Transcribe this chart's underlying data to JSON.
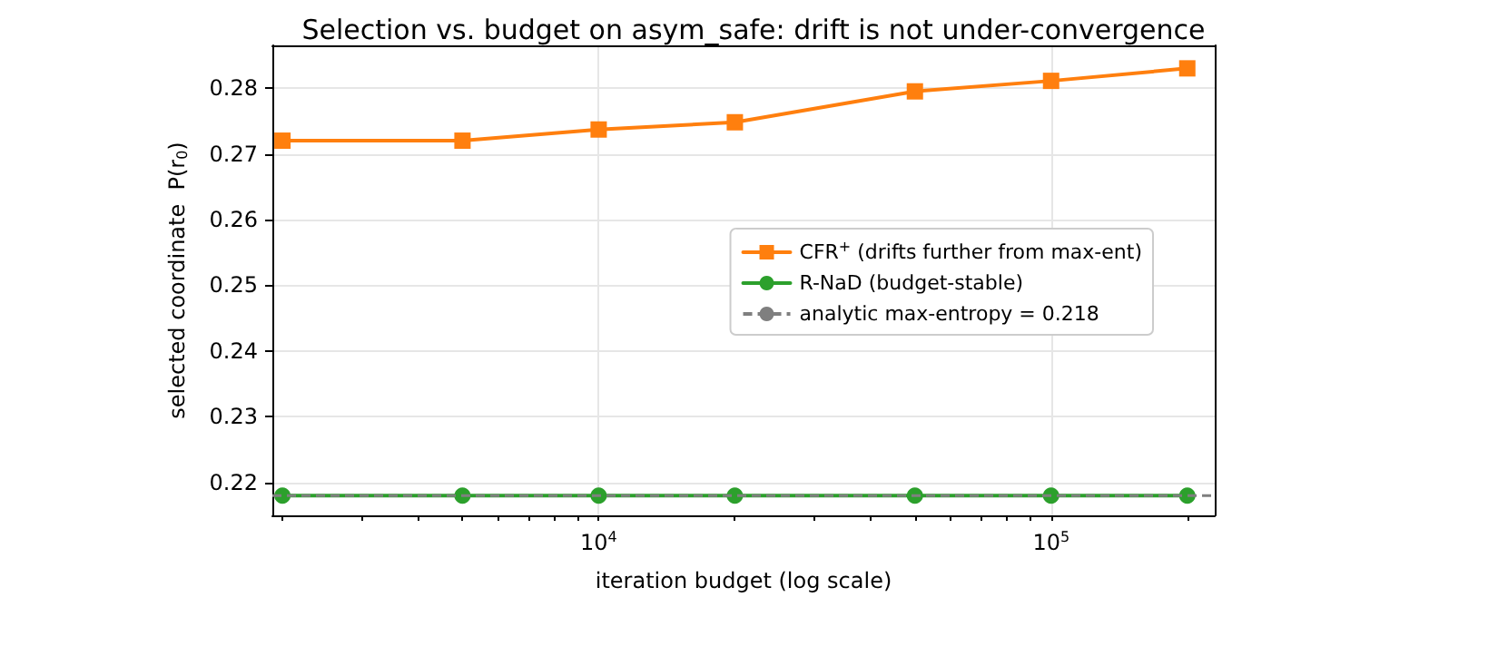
{
  "chart_data": {
    "type": "line",
    "title": "Selection vs. budget on asym_safe: drift is not under-convergence",
    "xlabel": "iteration budget (log scale)",
    "ylabel": "selected coordinate  P(r$_{0}$)",
    "x": [
      2000,
      5000,
      10000,
      20000,
      50000,
      100000,
      200000
    ],
    "series": [
      {
        "name": "CFR$^{+}$ (drifts further from max-ent)",
        "color": "#ff7f0e",
        "marker": "square",
        "values": [
          0.272,
          0.272,
          0.2737,
          0.2748,
          0.2795,
          0.2811,
          0.283
        ]
      },
      {
        "name": "R-NaD (budget-stable)",
        "color": "#2ca02c",
        "marker": "circle",
        "values": [
          0.218,
          0.218,
          0.218,
          0.218,
          0.218,
          0.218,
          0.218
        ]
      }
    ],
    "ref_lines": [
      {
        "axis": "y",
        "value": 0.218,
        "label": "analytic max-entropy = 0.218",
        "color": "#7f7f7f",
        "line_style": "dashed"
      }
    ],
    "log": "x",
    "xlim": [
      1900,
      230000
    ],
    "xticks": [
      {
        "value": 2000,
        "label": null
      },
      {
        "value": 3000,
        "label": null
      },
      {
        "value": 4000,
        "label": null
      },
      {
        "value": 5000,
        "label": null
      },
      {
        "value": 6000,
        "label": null
      },
      {
        "value": 7000,
        "label": null
      },
      {
        "value": 8000,
        "label": null
      },
      {
        "value": 9000,
        "label": null
      },
      {
        "value": 10000,
        "label": "10$^{4}$"
      },
      {
        "value": 20000,
        "label": null
      },
      {
        "value": 30000,
        "label": null
      },
      {
        "value": 40000,
        "label": null
      },
      {
        "value": 50000,
        "label": null
      },
      {
        "value": 60000,
        "label": null
      },
      {
        "value": 70000,
        "label": null
      },
      {
        "value": 80000,
        "label": null
      },
      {
        "value": 90000,
        "label": null
      },
      {
        "value": 100000,
        "label": "10$^{5}$"
      },
      {
        "value": 200000,
        "label": null
      }
    ],
    "ylim": [
      0.215,
      0.2865
    ],
    "yticks": [
      0.22,
      0.23,
      0.24,
      0.25,
      0.26,
      0.27,
      0.28
    ],
    "grid": true,
    "legend": "right",
    "line_style": "solid"
  }
}
